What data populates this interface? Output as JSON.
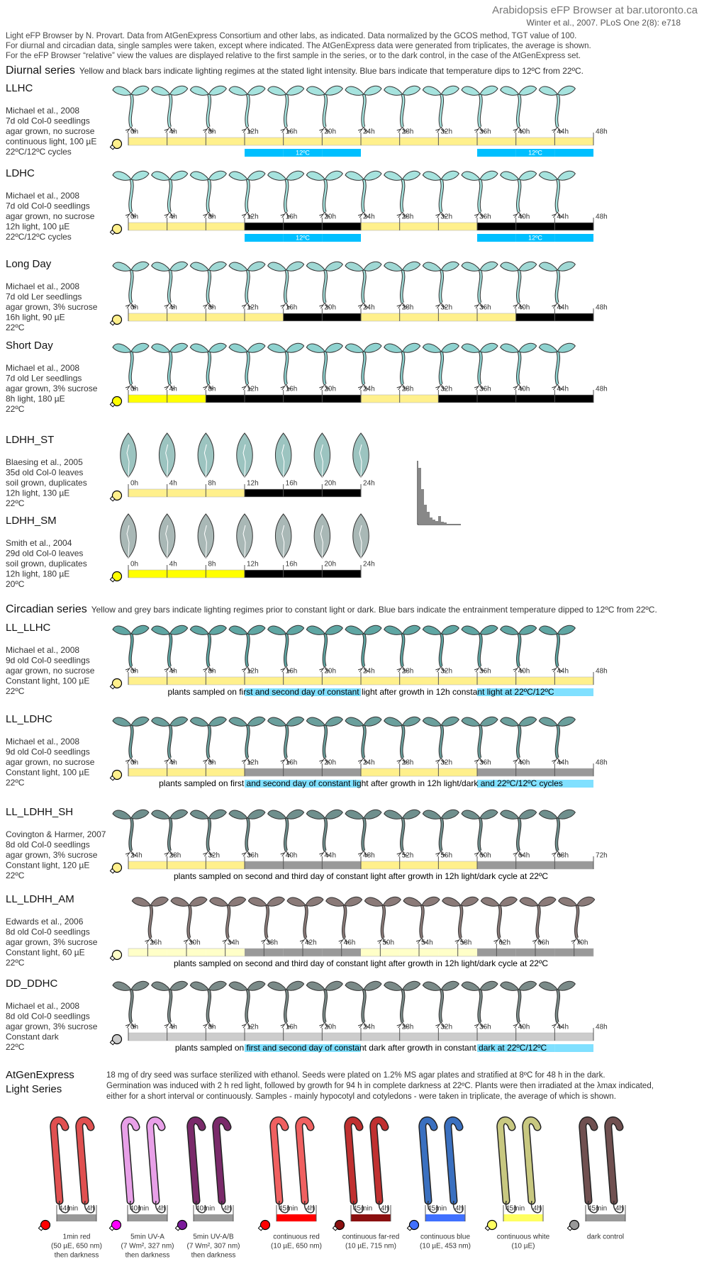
{
  "header": {
    "title": "Arabidopsis eFP Browser at bar.utoronto.ca",
    "citation": "Winter et al., 2007. PLoS One 2(8): e718",
    "notes": [
      "Light eFP Browser by N. Provart. Data from AtGenExpress Consortium and other labs, as indicated. Data normalized by the GCOS method, TGT value of 100.",
      "For diurnal and circadian data, single samples were taken, except where indicated. The AtGenExpress data were generated from triplicates, the average is shown.",
      "For the eFP Browser “relative” view the values are displayed relative to the first sample in the series, or to the dark control, in the case of the AtGenExpress set."
    ]
  },
  "sections": [
    {
      "title": "Diurnal series",
      "description": "Yellow and black bars indicate lighting regimes at the stated light intensity. Blue bars indicate that temperature dips to 12ºC from 22ºC.",
      "experiments": [
        {
          "name": "LLHC",
          "plant": "seedling",
          "plant_color": "#a6e3de",
          "info": [
            "Michael et al., 2008",
            "7d old Col-0 seedlings",
            "agar grown, no sucrose",
            "continuous light, 100  µE",
            "22ºC/12ºC cycles"
          ],
          "ticks": [
            "0h",
            "4h",
            "8h",
            "12h",
            "16h",
            "20h",
            "24h",
            "28h",
            "32h",
            "36h",
            "40h",
            "44h",
            "48h"
          ],
          "light": [
            "#fff08c",
            "#fff08c",
            "#fff08c",
            "#fff08c",
            "#fff08c",
            "#fff08c",
            "#fff08c",
            "#fff08c",
            "#fff08c",
            "#fff08c",
            "#fff08c",
            "#fff08c"
          ],
          "temperature": [
            null,
            null,
            null,
            "#00bfff",
            "#00bfff",
            "#00bfff",
            null,
            null,
            null,
            "#00bfff",
            "#00bfff",
            "#00bfff"
          ],
          "temperature_labels": [
            "12ºC",
            "12ºC"
          ]
        },
        {
          "name": "LDHC",
          "plant": "seedling",
          "plant_color": "#a6e3de",
          "info": [
            "Michael et al., 2008",
            "7d old Col-0 seedlings",
            "agar grown, no sucrose",
            "12h light, 100  µE",
            "22ºC/12ºC cycles"
          ],
          "ticks": [
            "0h",
            "4h",
            "8h",
            "12h",
            "16h",
            "20h",
            "24h",
            "28h",
            "32h",
            "36h",
            "40h",
            "44h",
            "48h"
          ],
          "light": [
            "#fff08c",
            "#fff08c",
            "#fff08c",
            "#000000",
            "#000000",
            "#000000",
            "#fff08c",
            "#fff08c",
            "#fff08c",
            "#000000",
            "#000000",
            "#000000"
          ],
          "temperature": [
            null,
            null,
            null,
            "#00bfff",
            "#00bfff",
            "#00bfff",
            null,
            null,
            null,
            "#00bfff",
            "#00bfff",
            "#00bfff"
          ],
          "temperature_labels": [
            "12ºC",
            "12ºC"
          ]
        },
        {
          "name": "Long Day",
          "plant": "seedling",
          "plant_color": "#9fd8d4",
          "info": [
            "Michael et al., 2008",
            "7d old Ler seedlings",
            "agar grown, 3% sucrose",
            "16h light, 90  µE",
            "22ºC"
          ],
          "ticks": [
            "0h",
            "4h",
            "8h",
            "12h",
            "16h",
            "20h",
            "24h",
            "28h",
            "32h",
            "36h",
            "40h",
            "44h",
            "48h"
          ],
          "light": [
            "#fff08c",
            "#fff08c",
            "#fff08c",
            "#fff08c",
            "#000000",
            "#000000",
            "#fff08c",
            "#fff08c",
            "#fff08c",
            "#fff08c",
            "#000000",
            "#000000"
          ]
        },
        {
          "name": "Short Day",
          "plant": "seedling",
          "plant_color": "#8ed2cf",
          "info": [
            "Michael et al., 2008",
            "7d old Ler seedlings",
            "agar grown, 3% sucrose",
            "8h light, 180  µE",
            "22ºC"
          ],
          "ticks": [
            "0h",
            "4h",
            "8h",
            "12h",
            "16h",
            "20h",
            "24h",
            "28h",
            "32h",
            "36h",
            "40h",
            "44h",
            "48h"
          ],
          "light": [
            "#ffff00",
            "#ffff00",
            "#000000",
            "#000000",
            "#000000",
            "#000000",
            "#fff08c",
            "#fff08c",
            "#000000",
            "#000000",
            "#000000",
            "#000000"
          ]
        },
        {
          "name": "LDHH_ST",
          "plant": "leaf",
          "plant_color": "#9cc4c0",
          "info": [
            "Blaesing et al., 2005",
            "35d old Col-0 leaves",
            "soil grown, duplicates",
            "12h light, 130  µE",
            "22ºC"
          ],
          "ticks": [
            "0h",
            "4h",
            "8h",
            "12h",
            "16h",
            "20h",
            "24h"
          ],
          "light": [
            "#fff08c",
            "#fff08c",
            "#fff08c",
            "#000000",
            "#000000",
            "#000000"
          ]
        },
        {
          "name": "LDHH_SM",
          "plant": "leaf",
          "plant_color": "#a9b8b6",
          "info": [
            "Smith et al., 2004",
            "29d old Col-0 leaves",
            "soil grown, duplicates",
            "12h light, 180  µE",
            "20ºC"
          ],
          "ticks": [
            "0h",
            "4h",
            "8h",
            "12h",
            "16h",
            "20h",
            "24h"
          ],
          "light": [
            "#ffff00",
            "#ffff00",
            "#ffff00",
            "#000000",
            "#000000",
            "#000000"
          ]
        }
      ]
    },
    {
      "title": "Circadian series",
      "description": "Yellow and grey bars indicate lighting regimes prior to constant light or dark. Blue bars indicate the entrainment temperature dipped to 12ºC from 22ºC.",
      "experiments": [
        {
          "name": "LL_LLHC",
          "plant": "seedling",
          "plant_color": "#5fa6a3",
          "info": [
            "Michael et al., 2008",
            "9d old Col-0 seedlings",
            "agar grown, no sucrose",
            "Constant light, 100  µE",
            "22ºC"
          ],
          "ticks": [
            "0h",
            "4h",
            "8h",
            "12h",
            "16h",
            "20h",
            "24h",
            "28h",
            "32h",
            "36h",
            "40h",
            "44h",
            "48h"
          ],
          "light": [
            "#fff08c",
            "#fff08c",
            "#fff08c",
            "#fff08c",
            "#fff08c",
            "#fff08c",
            "#fff08c",
            "#fff08c",
            "#fff08c",
            "#fff08c",
            "#fff08c",
            "#fff08c"
          ],
          "temperature": [
            null,
            null,
            null,
            "#80e0ff",
            "#80e0ff",
            "#80e0ff",
            null,
            null,
            null,
            "#80e0ff",
            "#80e0ff",
            "#80e0ff"
          ],
          "note": "plants sampled on first and second day of constant light after growth in 12h constant light at 22ºC/12ºC"
        },
        {
          "name": "LL_LDHC",
          "plant": "seedling",
          "plant_color": "#6a9f9c",
          "info": [
            "Michael et al., 2008",
            "9d old Col-0 seedlings",
            "agar grown, no sucrose",
            "Constant light, 100  µE",
            "22ºC"
          ],
          "ticks": [
            "0h",
            "4h",
            "8h",
            "12h",
            "16h",
            "20h",
            "24h",
            "28h",
            "32h",
            "36h",
            "40h",
            "44h",
            "48h"
          ],
          "light": [
            "#fff08c",
            "#fff08c",
            "#fff08c",
            "#999999",
            "#999999",
            "#999999",
            "#fff08c",
            "#fff08c",
            "#fff08c",
            "#999999",
            "#999999",
            "#999999"
          ],
          "temperature": [
            null,
            null,
            null,
            "#80e0ff",
            "#80e0ff",
            "#80e0ff",
            null,
            null,
            null,
            "#80e0ff",
            "#80e0ff",
            "#80e0ff"
          ],
          "note": "plants sampled on first and second day of constant light after growth in 12h light/dark and  22ºC/12ºC cycles"
        },
        {
          "name": "LL_LDHH_SH",
          "plant": "seedling",
          "plant_color": "#6f8f8d",
          "info": [
            "Covington & Harmer, 2007",
            "8d old Col-0 seedlings",
            "agar grown, 3% sucrose",
            "Constant light, 120  µE",
            "22ºC"
          ],
          "ticks": [
            "24h",
            "28h",
            "32h",
            "36h",
            "40h",
            "44h",
            "48h",
            "52h",
            "56h",
            "60h",
            "64h",
            "68h",
            "72h"
          ],
          "light": [
            "#fff08c",
            "#fff08c",
            "#fff08c",
            "#999999",
            "#999999",
            "#999999",
            "#fff08c",
            "#fff08c",
            "#fff08c",
            "#999999",
            "#999999",
            "#999999"
          ],
          "note": "plants sampled on second and third day of constant light after growth in 12h light/dark cycle at 22ºC"
        },
        {
          "name": "LL_LDHH_AM",
          "plant": "seedling",
          "plant_color": "#8a7a78",
          "info": [
            "Edwards et al., 2006",
            "8d old Col-0 seedlings",
            "agar grown, 3% sucrose",
            "Constant light, 60 µE",
            "22ºC"
          ],
          "ticks": [
            "26h",
            "30h",
            "34h",
            "38h",
            "42h",
            "46h",
            "50h",
            "54h",
            "58h",
            "62h",
            "66h",
            "70h"
          ],
          "light": [
            "#ffffc8",
            "#ffffc8",
            "#ffffc8",
            "#999999",
            "#999999",
            "#999999",
            "#ffffc8",
            "#ffffc8",
            "#ffffc8",
            "#999999",
            "#999999",
            "#999999"
          ],
          "note": "plants sampled on second and third day of constant light after growth in 12h light/dark cycle at 22ºC"
        },
        {
          "name": "DD_DDHC",
          "plant": "seedling",
          "plant_color": "#7a8a88",
          "info": [
            "Michael et al., 2008",
            "8d old Col-0 seedlings",
            "agar grown, 3% sucrose",
            "Constant dark",
            "22ºC"
          ],
          "ticks": [
            "0h",
            "4h",
            "8h",
            "12h",
            "16h",
            "20h",
            "24h",
            "28h",
            "32h",
            "36h",
            "40h",
            "44h",
            "48h"
          ],
          "light": [
            "#cccccc",
            "#cccccc",
            "#cccccc",
            "#cccccc",
            "#cccccc",
            "#cccccc",
            "#cccccc",
            "#cccccc",
            "#cccccc",
            "#cccccc",
            "#cccccc",
            "#cccccc"
          ],
          "temperature": [
            null,
            null,
            null,
            "#80e0ff",
            "#80e0ff",
            "#80e0ff",
            null,
            null,
            null,
            "#80e0ff",
            "#80e0ff",
            "#80e0ff"
          ],
          "note": "plants sampled on first and second day of constant dark after growth in constant dark at 22ºC/12ºC"
        }
      ]
    }
  ],
  "agx": {
    "title": [
      "AtGenExpress",
      "Light Series"
    ],
    "description": [
      "18 mg of dry seed was surface sterilized with ethanol. Seeds were plated on 1.2% MS agar plates and stratified at 8ºC for 48 h in the dark.",
      "Germination was induced with 2 h red light, followed by growth for 94 h in complete darkness at 22ºC. Plants were then irradiated at the λmax indicated,",
      "either for a short interval or continuously. Samples - mainly hypocotyl and cotyledons - were taken in triplicate, the average of which is shown."
    ],
    "groups": [
      {
        "ticks": [
          "44min",
          "4h"
        ],
        "bar_color": "#999999",
        "lamp_color": "#ff0000",
        "plant_color": "#e05050",
        "caption": [
          "1min red",
          "(50 µE, 650 nm)",
          "then darkness"
        ]
      },
      {
        "ticks": [
          "40min",
          "4h"
        ],
        "bar_color": "#999999",
        "lamp_color": "#ff00ff",
        "plant_color": "#e8a0e8",
        "caption": [
          "5min UV-A",
          "(7 Wm², 327 nm)",
          "then darkness"
        ]
      },
      {
        "ticks": [
          "40min",
          "4h"
        ],
        "bar_color": "#999999",
        "lamp_color": "#7a1a9a",
        "plant_color": "#7a2a6a",
        "caption": [
          "5min UV-A/B",
          "(7 Wm², 307 nm)",
          "then darkness"
        ]
      },
      {
        "ticks": [
          "45min",
          "4h"
        ],
        "bar_color": "#ff0000",
        "lamp_color": "#ff0000",
        "plant_color": "#f06060",
        "caption": [
          "continuous red",
          "(10 µE, 650 nm)"
        ]
      },
      {
        "ticks": [
          "45min",
          "4h"
        ],
        "bar_color": "#8b1010",
        "lamp_color": "#8b1010",
        "plant_color": "#c03030",
        "caption": [
          "continuous far-red",
          "(10 µE, 715 nm)"
        ]
      },
      {
        "ticks": [
          "45min",
          "4h"
        ],
        "bar_color": "#4070ff",
        "lamp_color": "#4070ff",
        "plant_color": "#3a70c0",
        "caption": [
          "continuous blue",
          "(10 µE, 453 nm)"
        ]
      },
      {
        "ticks": [
          "45min",
          "4h"
        ],
        "bar_color": "#ffff60",
        "lamp_color": "#ffff60",
        "plant_color": "#c8c880",
        "caption": [
          "continuous white",
          "(10 µE)"
        ]
      },
      {
        "ticks": [
          "45min",
          "4h"
        ],
        "bar_color": "#999999",
        "lamp_color": "#999999",
        "plant_color": "#705050",
        "caption": [
          "dark control"
        ]
      }
    ]
  }
}
